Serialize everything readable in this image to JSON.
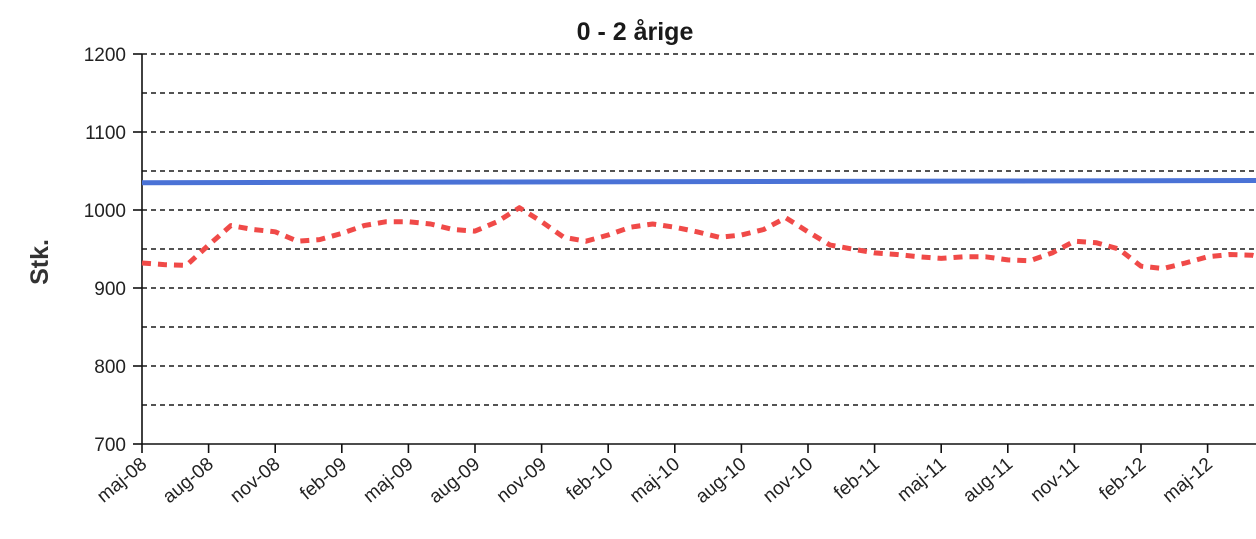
{
  "chart_data": {
    "type": "line",
    "title": "0 - 2 årige",
    "ylabel": "Stk.",
    "xlabel": "",
    "ylim": [
      700,
      1200
    ],
    "yticks": [
      700,
      800,
      900,
      1000,
      1100,
      1200
    ],
    "grid": true,
    "x_tick_labels": [
      "maj-08",
      "aug-08",
      "nov-08",
      "feb-09",
      "maj-09",
      "aug-09",
      "nov-09",
      "feb-10",
      "maj-10",
      "aug-10",
      "nov-10",
      "feb-11",
      "maj-11",
      "aug-11",
      "nov-11",
      "feb-12",
      "maj-12"
    ],
    "series": [
      {
        "color": "#4a72d6",
        "style": "solid",
        "start": "maj-08",
        "months": 52,
        "values": [
          1035,
          1038
        ]
      },
      {
        "color": "#f04a48",
        "style": "dashed",
        "start": "maj-08",
        "values": [
          932,
          930,
          929,
          955,
          980,
          975,
          972,
          960,
          962,
          970,
          980,
          985,
          985,
          982,
          975,
          973,
          985,
          1003,
          985,
          965,
          960,
          968,
          978,
          982,
          978,
          972,
          965,
          968,
          975,
          990,
          972,
          955,
          950,
          945,
          943,
          940,
          938,
          940,
          940,
          936,
          935,
          945,
          960,
          958,
          950,
          928,
          925,
          932,
          940,
          943,
          942,
          935,
          930
        ]
      }
    ]
  }
}
